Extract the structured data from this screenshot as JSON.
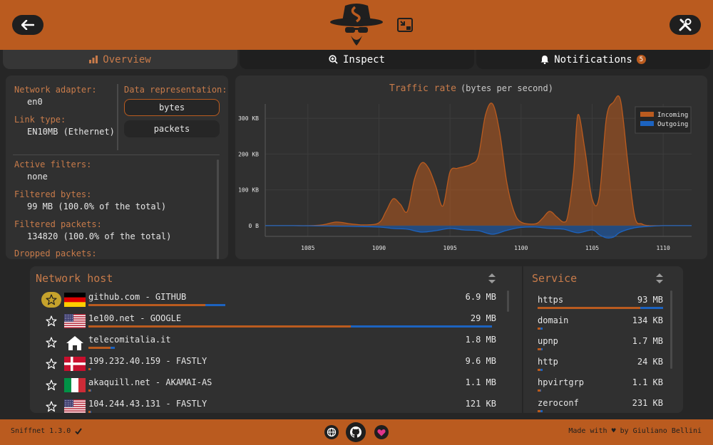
{
  "app": {
    "name": "Sniffnet"
  },
  "tabs": [
    {
      "label": "Overview",
      "active": true
    },
    {
      "label": "Inspect"
    },
    {
      "label": "Notifications",
      "badge": "5"
    }
  ],
  "info": {
    "adapter_label": "Network adapter:",
    "adapter_value": "en0",
    "link_label": "Link type:",
    "link_value": "EN10MB (Ethernet)",
    "rep_label": "Data representation:",
    "rep_bytes": "bytes",
    "rep_packets": "packets",
    "filters_label": "Active filters:",
    "filters_value": "none",
    "fbytes_label": "Filtered bytes:",
    "fbytes_value": "99 MB (100.0% of the total)",
    "fpackets_label": "Filtered packets:",
    "fpackets_value": "134820 (100.0% of the total)",
    "dropped_label": "Dropped packets:"
  },
  "chart_data": {
    "type": "area",
    "title": "Traffic rate",
    "subtitle": "(bytes per second)",
    "legend": [
      "Incoming",
      "Outgoing"
    ],
    "legend_position": "top-right",
    "xlim": [
      1082,
      1112
    ],
    "ylim": [
      -30,
      340
    ],
    "yticks": [
      0,
      100,
      200,
      300
    ],
    "ytick_labels": [
      "0 B",
      "100 KB",
      "200 KB",
      "300 KB"
    ],
    "xticks": [
      1085,
      1090,
      1095,
      1100,
      1105,
      1110
    ],
    "colors": {
      "incoming": "#ba5b1f",
      "outgoing": "#1c63c0"
    },
    "series": [
      {
        "name": "Incoming",
        "x": [
          1082,
          1083,
          1084,
          1085,
          1086,
          1087,
          1088,
          1089,
          1090,
          1090.5,
          1091,
          1091.5,
          1092,
          1092.5,
          1093,
          1093.5,
          1094,
          1094.5,
          1095,
          1095.5,
          1096,
          1096.5,
          1097,
          1097.5,
          1098,
          1098.5,
          1099,
          1099.5,
          1100,
          1101,
          1101.5,
          1102,
          1102.5,
          1103,
          1103.3,
          1103.7,
          1104,
          1104.5,
          1105,
          1105.5,
          1106,
          1106.5,
          1107,
          1107.5,
          1108,
          1108.5,
          1109,
          1110,
          1111,
          1112
        ],
        "values": [
          0,
          0,
          0,
          0,
          2,
          10,
          5,
          2,
          8,
          40,
          75,
          60,
          40,
          130,
          175,
          160,
          110,
          55,
          150,
          160,
          165,
          172,
          195,
          310,
          340,
          260,
          120,
          40,
          10,
          5,
          20,
          40,
          25,
          10,
          30,
          150,
          310,
          210,
          75,
          80,
          300,
          345,
          350,
          180,
          25,
          5,
          0,
          0,
          0,
          0
        ]
      },
      {
        "name": "Outgoing",
        "x": [
          1082,
          1084,
          1086,
          1088,
          1090,
          1091,
          1092,
          1093,
          1094,
          1095,
          1096,
          1097,
          1098,
          1099,
          1100,
          1101,
          1102,
          1103,
          1104,
          1105,
          1105.5,
          1106,
          1106.5,
          1107,
          1108,
          1109,
          1110,
          1112
        ],
        "values": [
          0,
          0,
          -1,
          -2,
          -4,
          -8,
          -10,
          -18,
          -14,
          -8,
          -12,
          -14,
          -24,
          -13,
          -5,
          -4,
          -8,
          -10,
          -20,
          -12,
          -25,
          -34,
          -32,
          -18,
          -6,
          -2,
          0,
          0
        ]
      }
    ]
  },
  "hosts": {
    "title": "Network host",
    "rows": [
      {
        "favorite": true,
        "flag": "de",
        "name": "github.com - GITHUB",
        "value": "6.9 MB",
        "in_frac": 0.29,
        "out_frac": 0.05
      },
      {
        "favorite": false,
        "flag": "us",
        "name": "1e100.net - GOOGLE",
        "value": "29 MB",
        "in_frac": 0.65,
        "out_frac": 0.35
      },
      {
        "favorite": false,
        "flag": "home",
        "name": "telecomitalia.it",
        "value": "1.8 MB",
        "in_frac": 0.055,
        "out_frac": 0.01
      },
      {
        "favorite": false,
        "flag": "dk",
        "name": "199.232.40.159 - FASTLY",
        "value": "9.6 MB",
        "in_frac": 0.005,
        "out_frac": 0.003
      },
      {
        "favorite": false,
        "flag": "it",
        "name": "akaquill.net - AKAMAI-AS",
        "value": "1.1 MB",
        "in_frac": 0.005,
        "out_frac": 0.003
      },
      {
        "favorite": false,
        "flag": "us",
        "name": "104.244.43.131 - FASTLY",
        "value": "121 KB",
        "in_frac": 0.005,
        "out_frac": 0.003
      }
    ]
  },
  "services": {
    "title": "Service",
    "rows": [
      {
        "name": "https",
        "value": "93 MB",
        "in_frac": 0.82,
        "out_frac": 0.18
      },
      {
        "name": "domain",
        "value": "134 KB",
        "in_frac": 0.02,
        "out_frac": 0.02
      },
      {
        "name": "upnp",
        "value": "1.7 MB",
        "in_frac": 0.03,
        "out_frac": 0.01
      },
      {
        "name": "http",
        "value": "24 KB",
        "in_frac": 0.02,
        "out_frac": 0.02
      },
      {
        "name": "hpvirtgrp",
        "value": "1.1 KB",
        "in_frac": 0.02,
        "out_frac": 0.01
      },
      {
        "name": "zeroconf",
        "value": "231 KB",
        "in_frac": 0.02,
        "out_frac": 0.02
      }
    ]
  },
  "footer": {
    "version": "Sniffnet 1.3.0",
    "made_by": "Made with ♥ by Giuliano Bellini"
  },
  "colors": {
    "accent": "#ba5b1f",
    "outgoing": "#1c63c0",
    "favorite": "#c5a22c",
    "panel": "#303030",
    "background": "#262626"
  }
}
